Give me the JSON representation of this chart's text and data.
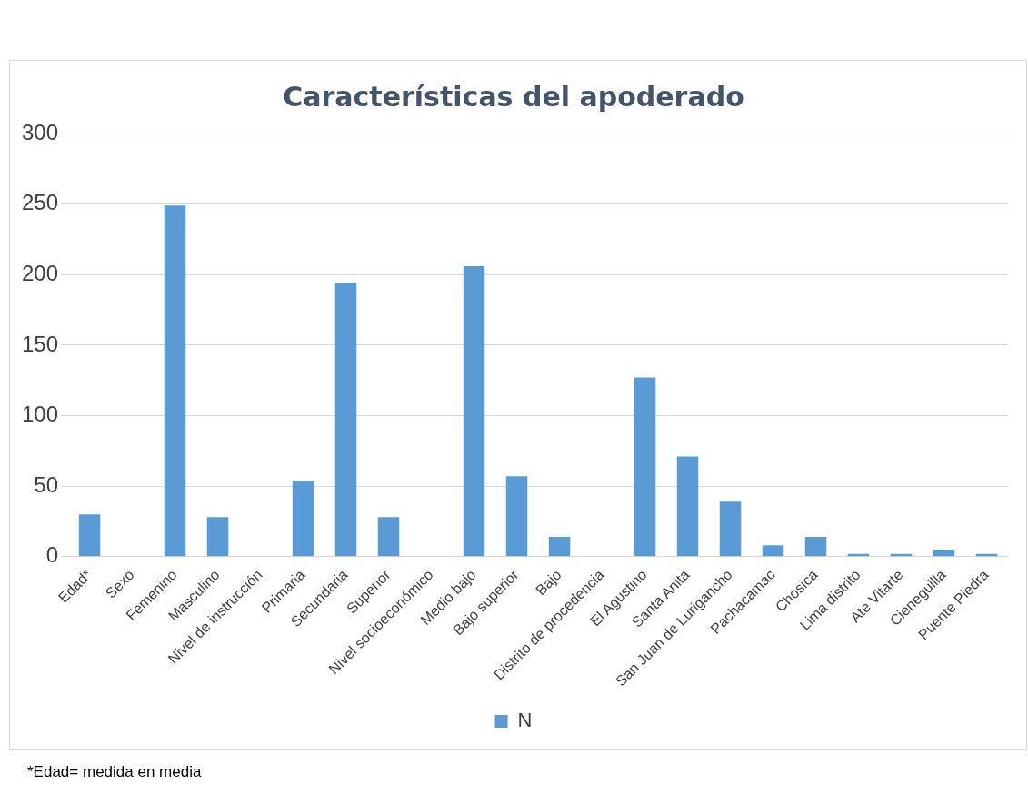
{
  "chart_data": {
    "type": "bar",
    "title": "Características del apoderado",
    "categories": [
      "Edad*",
      "Sexo",
      "Femenino",
      "Masculino",
      "Nivel de instrucción",
      "Primaria",
      "Secundaria",
      "Superior",
      "Nivel socioeconómico",
      "Medio bajo",
      "Bajo superior",
      "Bajo",
      "Distrito de procedencia",
      "El Agustino",
      "Santa Anita",
      "San Juan de Lurigancho",
      "Pachacamac",
      "Chosica",
      "Lima distrito",
      "Ate Vitarte",
      "Cieneguilla",
      "Puente Piedra"
    ],
    "series": [
      {
        "name": "N",
        "color": "#5b9bd5",
        "values": [
          30,
          null,
          249,
          28,
          null,
          54,
          194,
          28,
          null,
          206,
          57,
          14,
          null,
          127,
          71,
          39,
          8,
          14,
          2,
          2,
          5,
          2
        ]
      }
    ],
    "ylim": [
      0,
      300
    ],
    "yticks": [
      0,
      50,
      100,
      150,
      200,
      250,
      300
    ],
    "grid": "y",
    "legend": "bottom",
    "annotations": [
      "*Edad= medida en media"
    ]
  }
}
